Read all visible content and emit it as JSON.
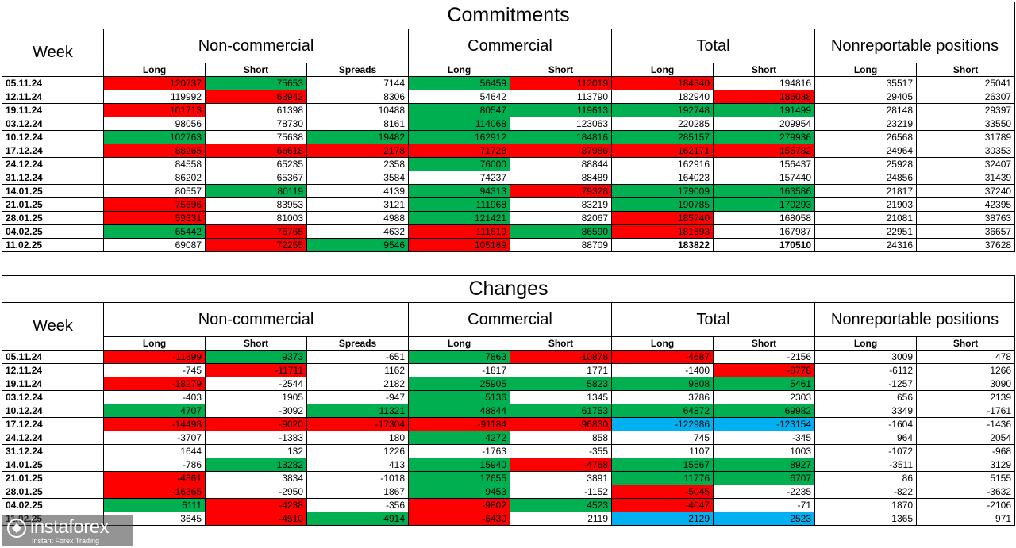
{
  "commitments": {
    "title": "Commitments",
    "groups": {
      "week": "Week",
      "noncommercial": "Non-commercial",
      "commercial": "Commercial",
      "total": "Total",
      "nonreportable": "Nonreportable positions"
    },
    "subheaders": [
      "Long",
      "Short",
      "Spreads",
      "Long",
      "Short",
      "Long",
      "Short",
      "Long",
      "Short"
    ],
    "rows": [
      {
        "date": "05.11.24",
        "values": [
          "120737",
          "75653",
          "7144",
          "56459",
          "112019",
          "184340",
          "194816",
          "35517",
          "25041"
        ],
        "colors": [
          "r",
          "g",
          "",
          "g",
          "r",
          "r",
          "",
          "",
          ""
        ],
        "bold": []
      },
      {
        "date": "12.11.24",
        "values": [
          "119992",
          "63942",
          "8306",
          "54642",
          "113790",
          "182940",
          "186038",
          "29405",
          "26307"
        ],
        "colors": [
          "",
          "r",
          "",
          "",
          "",
          "",
          "r",
          "",
          ""
        ],
        "bold": []
      },
      {
        "date": "19.11.24",
        "values": [
          "101713",
          "61398",
          "10488",
          "80547",
          "119613",
          "192748",
          "191499",
          "28148",
          "29397"
        ],
        "colors": [
          "r",
          "",
          "",
          "g",
          "g",
          "g",
          "g",
          "",
          ""
        ],
        "bold": []
      },
      {
        "date": "03.12.24",
        "values": [
          "98056",
          "78730",
          "8161",
          "114068",
          "123063",
          "220285",
          "209954",
          "23219",
          "33550"
        ],
        "colors": [
          "",
          "",
          "",
          "g",
          "",
          "",
          "",
          "",
          ""
        ],
        "bold": []
      },
      {
        "date": "10.12.24",
        "values": [
          "102763",
          "75638",
          "19482",
          "162912",
          "184816",
          "285157",
          "279936",
          "26568",
          "31789"
        ],
        "colors": [
          "g",
          "",
          "g",
          "g",
          "g",
          "g",
          "g",
          "",
          ""
        ],
        "bold": []
      },
      {
        "date": "17.12.24",
        "values": [
          "88265",
          "66618",
          "2178",
          "71728",
          "87986",
          "162171",
          "156782",
          "24964",
          "30353"
        ],
        "colors": [
          "r",
          "r",
          "r",
          "r",
          "r",
          "r",
          "r",
          "",
          ""
        ],
        "bold": []
      },
      {
        "date": "24.12.24",
        "values": [
          "84558",
          "65235",
          "2358",
          "76000",
          "88844",
          "162916",
          "156437",
          "25928",
          "32407"
        ],
        "colors": [
          "",
          "",
          "",
          "g",
          "",
          "",
          "",
          "",
          ""
        ],
        "bold": []
      },
      {
        "date": "31.12.24",
        "values": [
          "86202",
          "65367",
          "3584",
          "74237",
          "88489",
          "164023",
          "157440",
          "24856",
          "31439"
        ],
        "colors": [
          "",
          "",
          "",
          "",
          "",
          "",
          "",
          "",
          ""
        ],
        "bold": []
      },
      {
        "date": "14.01.25",
        "values": [
          "80557",
          "80119",
          "4139",
          "94313",
          "79328",
          "179009",
          "163586",
          "21817",
          "37240"
        ],
        "colors": [
          "",
          "g",
          "",
          "g",
          "r",
          "g",
          "g",
          "",
          ""
        ],
        "bold": []
      },
      {
        "date": "21.01.25",
        "values": [
          "75696",
          "83953",
          "3121",
          "111968",
          "83219",
          "190785",
          "170293",
          "21903",
          "42395"
        ],
        "colors": [
          "r",
          "",
          "",
          "g",
          "",
          "g",
          "g",
          "",
          ""
        ],
        "bold": []
      },
      {
        "date": "28.01.25",
        "values": [
          "59331",
          "81003",
          "4988",
          "121421",
          "82067",
          "185740",
          "168058",
          "21081",
          "38763"
        ],
        "colors": [
          "r",
          "",
          "",
          "g",
          "",
          "r",
          "",
          "",
          ""
        ],
        "bold": []
      },
      {
        "date": "04.02.25",
        "values": [
          "65442",
          "76765",
          "4632",
          "111619",
          "86590",
          "181693",
          "167987",
          "22951",
          "36657"
        ],
        "colors": [
          "g",
          "r",
          "",
          "r",
          "g",
          "r",
          "",
          "",
          ""
        ],
        "bold": []
      },
      {
        "date": "11.02.25",
        "values": [
          "69087",
          "72255",
          "9546",
          "105189",
          "88709",
          "183822",
          "170510",
          "24316",
          "37628"
        ],
        "colors": [
          "",
          "r",
          "g",
          "r",
          "",
          "",
          "",
          "",
          ""
        ],
        "bold": [
          5,
          6
        ]
      }
    ]
  },
  "changes": {
    "title": "Changes",
    "groups": {
      "week": "Week",
      "noncommercial": "Non-commercial",
      "commercial": "Commercial",
      "total": "Total",
      "nonreportable": "Nonreportable positions"
    },
    "subheaders": [
      "Long",
      "Short",
      "Spreads",
      "Long",
      "Short",
      "Long",
      "Short",
      "Long",
      "Short"
    ],
    "rows": [
      {
        "date": "05.11.24",
        "values": [
          "-11899",
          "9373",
          "-651",
          "7863",
          "-10878",
          "-4687",
          "-2156",
          "3009",
          "478"
        ],
        "colors": [
          "r",
          "g",
          "",
          "g",
          "r",
          "r",
          "",
          "",
          ""
        ]
      },
      {
        "date": "12.11.24",
        "values": [
          "-745",
          "-11711",
          "1162",
          "-1817",
          "1771",
          "-1400",
          "-8778",
          "-6112",
          "1266"
        ],
        "colors": [
          "",
          "r",
          "",
          "",
          "",
          "",
          "r",
          "",
          ""
        ]
      },
      {
        "date": "19.11.24",
        "values": [
          "-18279",
          "-2544",
          "2182",
          "25905",
          "5823",
          "9808",
          "5461",
          "-1257",
          "3090"
        ],
        "colors": [
          "r",
          "",
          "",
          "g",
          "g",
          "g",
          "g",
          "",
          ""
        ]
      },
      {
        "date": "03.12.24",
        "values": [
          "-403",
          "1905",
          "-947",
          "5136",
          "1345",
          "3786",
          "2303",
          "656",
          "2139"
        ],
        "colors": [
          "",
          "",
          "",
          "g",
          "",
          "",
          "",
          "",
          ""
        ]
      },
      {
        "date": "10.12.24",
        "values": [
          "4707",
          "-3092",
          "11321",
          "48844",
          "61753",
          "64872",
          "69982",
          "3349",
          "-1761"
        ],
        "colors": [
          "g",
          "",
          "g",
          "g",
          "g",
          "g",
          "g",
          "",
          ""
        ]
      },
      {
        "date": "17.12.24",
        "values": [
          "-14498",
          "-9020",
          "-17304",
          "-91184",
          "-96830",
          "-122986",
          "-123154",
          "-1604",
          "-1436"
        ],
        "colors": [
          "r",
          "r",
          "r",
          "r",
          "r",
          "b",
          "b",
          "",
          ""
        ]
      },
      {
        "date": "24.12.24",
        "values": [
          "-3707",
          "-1383",
          "180",
          "4272",
          "858",
          "745",
          "-345",
          "964",
          "2054"
        ],
        "colors": [
          "",
          "",
          "",
          "g",
          "",
          "",
          "",
          "",
          ""
        ]
      },
      {
        "date": "31.12.24",
        "values": [
          "1644",
          "132",
          "1226",
          "-1763",
          "-355",
          "1107",
          "1003",
          "-1072",
          "-968"
        ],
        "colors": [
          "",
          "",
          "",
          "",
          "",
          "",
          "",
          "",
          ""
        ]
      },
      {
        "date": "14.01.25",
        "values": [
          "-786",
          "13282",
          "413",
          "15940",
          "-4768",
          "15567",
          "8927",
          "-3511",
          "3129"
        ],
        "colors": [
          "",
          "g",
          "",
          "g",
          "r",
          "g",
          "g",
          "",
          ""
        ]
      },
      {
        "date": "21.01.25",
        "values": [
          "-4861",
          "3834",
          "-1018",
          "17655",
          "3891",
          "11776",
          "6707",
          "86",
          "5155"
        ],
        "colors": [
          "r",
          "",
          "",
          "g",
          "",
          "g",
          "g",
          "",
          ""
        ]
      },
      {
        "date": "28.01.25",
        "values": [
          "-16365",
          "-2950",
          "1867",
          "9453",
          "-1152",
          "-5045",
          "-2235",
          "-822",
          "-3632"
        ],
        "colors": [
          "r",
          "",
          "",
          "g",
          "",
          "r",
          "",
          "",
          ""
        ]
      },
      {
        "date": "04.02.25",
        "values": [
          "6111",
          "-4238",
          "-356",
          "-9802",
          "4523",
          "-4047",
          "-71",
          "1870",
          "-2106"
        ],
        "colors": [
          "g",
          "r",
          "",
          "r",
          "g",
          "r",
          "",
          "",
          ""
        ]
      },
      {
        "date": "11.02.25",
        "values": [
          "3645",
          "-4510",
          "4914",
          "-6430",
          "2119",
          "2129",
          "2523",
          "1365",
          "971"
        ],
        "colors": [
          "",
          "r",
          "g",
          "r",
          "",
          "b",
          "b",
          "",
          ""
        ]
      }
    ]
  },
  "watermark": {
    "brand": "instaforex",
    "tagline": "Instant Forex Trading"
  }
}
